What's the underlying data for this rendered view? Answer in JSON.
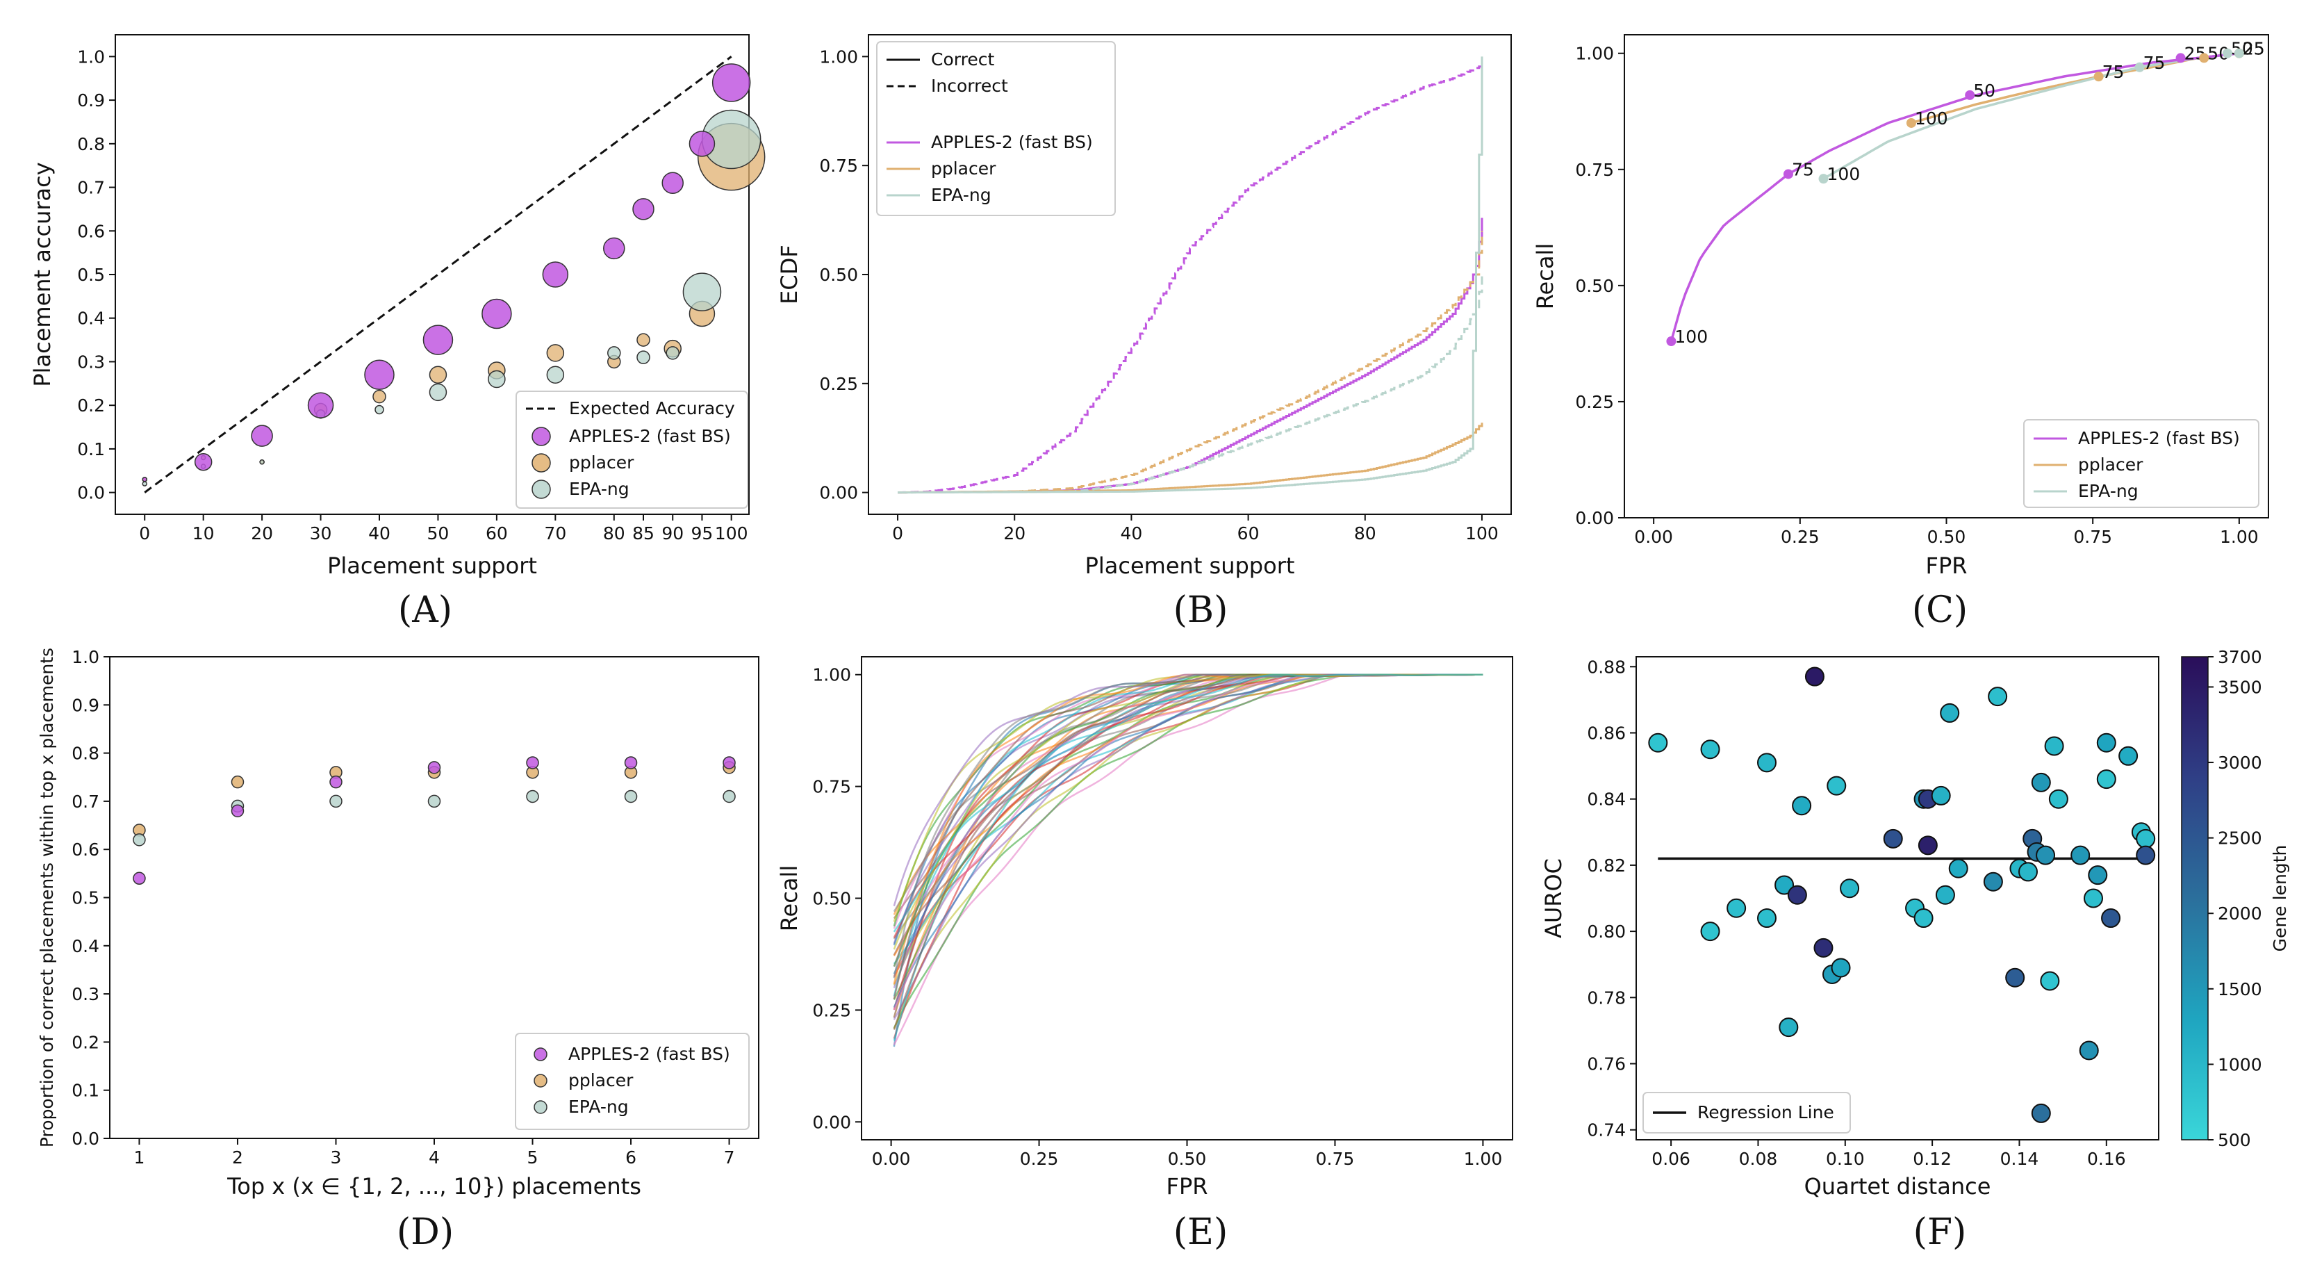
{
  "colors": {
    "apples": "#c158e0",
    "pplacer": "#e0b070",
    "epa": "#b8d4cc",
    "expected": "#111111",
    "regression": "#111111"
  },
  "chart_data": [
    {
      "panel": "(A)",
      "type": "scatter",
      "xlabel": "Placement support",
      "ylabel": "Placement accuracy",
      "xtick_labels": [
        "0",
        "10",
        "20",
        "30",
        "40",
        "50",
        "60",
        "70",
        "80",
        "85",
        "90",
        "95",
        "100"
      ],
      "ytick_labels": [
        "0.0",
        "0.1",
        "0.2",
        "0.3",
        "0.4",
        "0.5",
        "0.6",
        "0.7",
        "0.8",
        "0.9",
        "1.0"
      ],
      "xlim": [
        -5,
        103
      ],
      "ylim": [
        -0.05,
        1.05
      ],
      "legend": [
        "Expected Accuracy",
        "APPLES-2 (fast BS)",
        "pplacer",
        "EPA-ng"
      ],
      "legend_position": "lower-right",
      "expected_line": {
        "name": "Expected Accuracy",
        "x": [
          0,
          100
        ],
        "y": [
          0,
          1
        ]
      },
      "series": [
        {
          "name": "APPLES-2 (fast BS)",
          "x": [
            0,
            10,
            20,
            30,
            40,
            50,
            60,
            70,
            80,
            85,
            90,
            95,
            100
          ],
          "y": [
            0.03,
            0.07,
            0.13,
            0.2,
            0.27,
            0.35,
            0.41,
            0.5,
            0.56,
            0.65,
            0.71,
            0.8,
            0.94
          ],
          "sizes": [
            1,
            4,
            5,
            6,
            7,
            7,
            7,
            6,
            5,
            5,
            5,
            6,
            9
          ]
        },
        {
          "name": "pplacer",
          "x": [
            0,
            10,
            20,
            30,
            40,
            50,
            60,
            70,
            80,
            85,
            90,
            95,
            100
          ],
          "y": [
            0.03,
            0.08,
            0.07,
            0.19,
            0.22,
            0.27,
            0.28,
            0.32,
            0.3,
            0.35,
            0.33,
            0.41,
            0.77
          ],
          "sizes": [
            1,
            1,
            1,
            3,
            3,
            4,
            4,
            4,
            3,
            3,
            4,
            6,
            16
          ]
        },
        {
          "name": "EPA-ng",
          "x": [
            0,
            10,
            20,
            30,
            40,
            50,
            60,
            70,
            80,
            85,
            90,
            95,
            100
          ],
          "y": [
            0.02,
            0.06,
            0.07,
            0.18,
            0.19,
            0.23,
            0.26,
            0.27,
            0.32,
            0.31,
            0.32,
            0.46,
            0.81
          ],
          "sizes": [
            1,
            1,
            1,
            2,
            2,
            4,
            4,
            4,
            3,
            3,
            3,
            9,
            14
          ]
        }
      ]
    },
    {
      "panel": "(B)",
      "type": "line",
      "xlabel": "Placement support",
      "ylabel": "ECDF",
      "xtick_labels": [
        "0",
        "20",
        "40",
        "60",
        "80",
        "100"
      ],
      "ytick_labels": [
        "0.00",
        "0.25",
        "0.50",
        "0.75",
        "1.00"
      ],
      "xlim": [
        -5,
        105
      ],
      "ylim": [
        -0.05,
        1.05
      ],
      "legend_linestyles": [
        "Correct",
        "Incorrect"
      ],
      "legend": [
        "APPLES-2 (fast BS)",
        "pplacer",
        "EPA-ng"
      ],
      "legend_position": "upper-left",
      "series": [
        {
          "name": "APPLES-2 (fast BS)",
          "style": "solid",
          "x": [
            0,
            20,
            30,
            40,
            50,
            60,
            70,
            80,
            90,
            95,
            98,
            99,
            100
          ],
          "y": [
            0,
            0.002,
            0.005,
            0.02,
            0.06,
            0.13,
            0.2,
            0.27,
            0.35,
            0.41,
            0.48,
            0.52,
            0.63
          ]
        },
        {
          "name": "APPLES-2 (fast BS)",
          "style": "dashed",
          "x": [
            0,
            5,
            10,
            20,
            30,
            40,
            50,
            60,
            70,
            80,
            90,
            95,
            100
          ],
          "y": [
            0,
            0.002,
            0.01,
            0.04,
            0.14,
            0.33,
            0.56,
            0.7,
            0.79,
            0.87,
            0.93,
            0.95,
            0.98
          ]
        },
        {
          "name": "pplacer",
          "style": "solid",
          "x": [
            0,
            40,
            60,
            80,
            90,
            95,
            98,
            100
          ],
          "y": [
            0,
            0.005,
            0.02,
            0.05,
            0.08,
            0.11,
            0.13,
            0.16
          ]
        },
        {
          "name": "pplacer",
          "style": "dashed",
          "x": [
            0,
            20,
            30,
            40,
            50,
            60,
            70,
            80,
            90,
            95,
            99,
            100
          ],
          "y": [
            0,
            0.002,
            0.01,
            0.04,
            0.1,
            0.16,
            0.22,
            0.29,
            0.37,
            0.43,
            0.5,
            0.6
          ]
        },
        {
          "name": "EPA-ng",
          "style": "solid",
          "x": [
            0,
            40,
            60,
            80,
            90,
            95,
            98,
            100
          ],
          "y": [
            0,
            0.002,
            0.01,
            0.03,
            0.05,
            0.07,
            0.1,
            1.0
          ]
        },
        {
          "name": "EPA-ng",
          "style": "dashed",
          "x": [
            0,
            30,
            40,
            50,
            60,
            70,
            80,
            90,
            95,
            99,
            100
          ],
          "y": [
            0,
            0.002,
            0.02,
            0.06,
            0.11,
            0.16,
            0.21,
            0.27,
            0.33,
            0.42,
            0.5
          ]
        }
      ]
    },
    {
      "panel": "(C)",
      "type": "line",
      "xlabel": "FPR",
      "ylabel": "Recall",
      "xtick_labels": [
        "0.00",
        "0.25",
        "0.50",
        "0.75",
        "1.00"
      ],
      "ytick_labels": [
        "0.00",
        "0.25",
        "0.50",
        "0.75",
        "1.00"
      ],
      "xlim": [
        -0.05,
        1.05
      ],
      "ylim": [
        0,
        1.0
      ],
      "legend": [
        "APPLES-2 (fast BS)",
        "pplacer",
        "EPA-ng"
      ],
      "legend_position": "lower-right",
      "series": [
        {
          "name": "APPLES-2 (fast BS)",
          "x": [
            0.03,
            0.05,
            0.08,
            0.12,
            0.17,
            0.23,
            0.3,
            0.4,
            0.55,
            0.7,
            0.85,
            0.93,
            1.0
          ],
          "y": [
            0.38,
            0.47,
            0.56,
            0.63,
            0.68,
            0.74,
            0.79,
            0.85,
            0.91,
            0.95,
            0.98,
            0.99,
            1.0
          ]
        },
        {
          "name": "pplacer",
          "x": [
            0.44,
            0.55,
            0.65,
            0.76,
            0.85,
            0.93,
            1.0
          ],
          "y": [
            0.85,
            0.89,
            0.92,
            0.95,
            0.97,
            0.99,
            1.0
          ]
        },
        {
          "name": "EPA-ng",
          "x": [
            0.29,
            0.4,
            0.55,
            0.7,
            0.83,
            0.93,
            1.0
          ],
          "y": [
            0.73,
            0.81,
            0.88,
            0.93,
            0.97,
            0.99,
            1.0
          ]
        }
      ],
      "annotations": [
        {
          "text": "100",
          "x": 0.03,
          "y": 0.38,
          "series": "APPLES-2 (fast BS)"
        },
        {
          "text": "75",
          "x": 0.23,
          "y": 0.74,
          "series": "APPLES-2 (fast BS)"
        },
        {
          "text": "100",
          "x": 0.29,
          "y": 0.73,
          "series": "EPA-ng"
        },
        {
          "text": "100",
          "x": 0.44,
          "y": 0.85,
          "series": "pplacer"
        },
        {
          "text": "50",
          "x": 0.54,
          "y": 0.91,
          "series": "APPLES-2 (fast BS)"
        },
        {
          "text": "75",
          "x": 0.76,
          "y": 0.95,
          "series": "pplacer"
        },
        {
          "text": "75",
          "x": 0.83,
          "y": 0.97,
          "series": "EPA-ng"
        },
        {
          "text": "25",
          "x": 0.9,
          "y": 0.99,
          "series": "APPLES-2 (fast BS)"
        },
        {
          "text": "50",
          "x": 0.94,
          "y": 0.99,
          "series": "pplacer"
        },
        {
          "text": "50",
          "x": 0.98,
          "y": 1.0,
          "series": "EPA-ng"
        },
        {
          "text": "25",
          "x": 1.0,
          "y": 1.0,
          "series": "pplacer"
        },
        {
          "text": "25",
          "x": 1.0,
          "y": 1.0,
          "series": "EPA-ng"
        }
      ]
    },
    {
      "panel": "(D)",
      "type": "scatter",
      "xlabel": "Top x (x ∈ {1, 2, ..., 10}) placements",
      "ylabel": "Proportion of correct placements within top x placements",
      "xtick_labels": [
        "1",
        "2",
        "3",
        "4",
        "5",
        "6",
        "7"
      ],
      "ytick_labels": [
        "0.0",
        "0.1",
        "0.2",
        "0.3",
        "0.4",
        "0.5",
        "0.6",
        "0.7",
        "0.8",
        "0.9",
        "1.0"
      ],
      "xlim": [
        0.7,
        7.3
      ],
      "ylim": [
        0,
        1.0
      ],
      "legend": [
        "APPLES-2 (fast BS)",
        "pplacer",
        "EPA-ng"
      ],
      "legend_position": "lower-right",
      "series": [
        {
          "name": "APPLES-2 (fast BS)",
          "x": [
            1,
            2,
            3,
            4,
            5,
            6,
            7
          ],
          "y": [
            0.54,
            0.68,
            0.74,
            0.77,
            0.78,
            0.78,
            0.78
          ]
        },
        {
          "name": "pplacer",
          "x": [
            1,
            2,
            3,
            4,
            5,
            6,
            7
          ],
          "y": [
            0.64,
            0.74,
            0.76,
            0.76,
            0.76,
            0.76,
            0.77
          ]
        },
        {
          "name": "EPA-ng",
          "x": [
            1,
            2,
            3,
            4,
            5,
            6,
            7
          ],
          "y": [
            0.62,
            0.69,
            0.7,
            0.7,
            0.71,
            0.71,
            0.71
          ]
        }
      ]
    },
    {
      "panel": "(E)",
      "type": "line",
      "xlabel": "FPR",
      "ylabel": "Recall",
      "xtick_labels": [
        "0.00",
        "0.25",
        "0.50",
        "0.75",
        "1.00"
      ],
      "ytick_labels": [
        "0.00",
        "0.25",
        "0.50",
        "0.75",
        "1.00"
      ],
      "xlim": [
        -0.05,
        1.05
      ],
      "ylim": [
        0,
        1.0
      ],
      "series_count": 40,
      "recall_at_fpr0_range": [
        0.18,
        0.52
      ],
      "curve_shape": "ROC curves from FPR≈0.005 to 1.0, all reaching recall 1.0"
    },
    {
      "panel": "(F)",
      "type": "scatter",
      "xlabel": "Quartet distance",
      "ylabel": "AUROC",
      "xtick_labels": [
        "0.06",
        "0.08",
        "0.10",
        "0.12",
        "0.14",
        "0.16"
      ],
      "ytick_labels": [
        "0.74",
        "0.76",
        "0.78",
        "0.80",
        "0.82",
        "0.84",
        "0.86",
        "0.88"
      ],
      "xlim": [
        0.052,
        0.172
      ],
      "ylim": [
        0.737,
        0.883
      ],
      "legend": [
        "Regression Line"
      ],
      "legend_position": "lower-left",
      "colorbar": {
        "label": "Gene length",
        "min": 500,
        "max": 3700,
        "tick_labels": [
          "500",
          "1000",
          "1500",
          "2000",
          "2500",
          "3000",
          "3500",
          "3700"
        ]
      },
      "regression_line": {
        "x": [
          0.057,
          0.17
        ],
        "y": [
          0.822,
          0.822
        ]
      },
      "points": [
        {
          "x": 0.057,
          "y": 0.857,
          "gene_length": 800
        },
        {
          "x": 0.069,
          "y": 0.855,
          "gene_length": 900
        },
        {
          "x": 0.069,
          "y": 0.8,
          "gene_length": 800
        },
        {
          "x": 0.075,
          "y": 0.807,
          "gene_length": 900
        },
        {
          "x": 0.082,
          "y": 0.851,
          "gene_length": 1000
        },
        {
          "x": 0.082,
          "y": 0.804,
          "gene_length": 900
        },
        {
          "x": 0.086,
          "y": 0.814,
          "gene_length": 1200
        },
        {
          "x": 0.087,
          "y": 0.771,
          "gene_length": 1100
        },
        {
          "x": 0.089,
          "y": 0.811,
          "gene_length": 3100
        },
        {
          "x": 0.09,
          "y": 0.838,
          "gene_length": 1200
        },
        {
          "x": 0.093,
          "y": 0.877,
          "gene_length": 3500
        },
        {
          "x": 0.095,
          "y": 0.795,
          "gene_length": 3200
        },
        {
          "x": 0.097,
          "y": 0.787,
          "gene_length": 1400
        },
        {
          "x": 0.098,
          "y": 0.844,
          "gene_length": 900
        },
        {
          "x": 0.099,
          "y": 0.789,
          "gene_length": 1300
        },
        {
          "x": 0.101,
          "y": 0.813,
          "gene_length": 1000
        },
        {
          "x": 0.111,
          "y": 0.828,
          "gene_length": 2600
        },
        {
          "x": 0.116,
          "y": 0.807,
          "gene_length": 900
        },
        {
          "x": 0.118,
          "y": 0.804,
          "gene_length": 900
        },
        {
          "x": 0.118,
          "y": 0.84,
          "gene_length": 1500
        },
        {
          "x": 0.119,
          "y": 0.826,
          "gene_length": 3400
        },
        {
          "x": 0.119,
          "y": 0.84,
          "gene_length": 3000
        },
        {
          "x": 0.122,
          "y": 0.841,
          "gene_length": 1100
        },
        {
          "x": 0.123,
          "y": 0.811,
          "gene_length": 1100
        },
        {
          "x": 0.124,
          "y": 0.866,
          "gene_length": 1100
        },
        {
          "x": 0.126,
          "y": 0.819,
          "gene_length": 1200
        },
        {
          "x": 0.134,
          "y": 0.815,
          "gene_length": 1700
        },
        {
          "x": 0.135,
          "y": 0.871,
          "gene_length": 900
        },
        {
          "x": 0.139,
          "y": 0.786,
          "gene_length": 2400
        },
        {
          "x": 0.14,
          "y": 0.819,
          "gene_length": 1000
        },
        {
          "x": 0.142,
          "y": 0.818,
          "gene_length": 1000
        },
        {
          "x": 0.143,
          "y": 0.828,
          "gene_length": 2300
        },
        {
          "x": 0.144,
          "y": 0.824,
          "gene_length": 1900
        },
        {
          "x": 0.145,
          "y": 0.745,
          "gene_length": 2100
        },
        {
          "x": 0.145,
          "y": 0.845,
          "gene_length": 1500
        },
        {
          "x": 0.146,
          "y": 0.823,
          "gene_length": 1600
        },
        {
          "x": 0.147,
          "y": 0.785,
          "gene_length": 800
        },
        {
          "x": 0.148,
          "y": 0.856,
          "gene_length": 1000
        },
        {
          "x": 0.149,
          "y": 0.84,
          "gene_length": 900
        },
        {
          "x": 0.154,
          "y": 0.823,
          "gene_length": 1500
        },
        {
          "x": 0.156,
          "y": 0.764,
          "gene_length": 1600
        },
        {
          "x": 0.157,
          "y": 0.81,
          "gene_length": 900
        },
        {
          "x": 0.158,
          "y": 0.817,
          "gene_length": 1500
        },
        {
          "x": 0.16,
          "y": 0.846,
          "gene_length": 800
        },
        {
          "x": 0.16,
          "y": 0.857,
          "gene_length": 1300
        },
        {
          "x": 0.161,
          "y": 0.804,
          "gene_length": 2500
        },
        {
          "x": 0.165,
          "y": 0.853,
          "gene_length": 1200
        },
        {
          "x": 0.168,
          "y": 0.83,
          "gene_length": 900
        },
        {
          "x": 0.169,
          "y": 0.828,
          "gene_length": 900
        },
        {
          "x": 0.169,
          "y": 0.823,
          "gene_length": 2600
        }
      ]
    }
  ]
}
